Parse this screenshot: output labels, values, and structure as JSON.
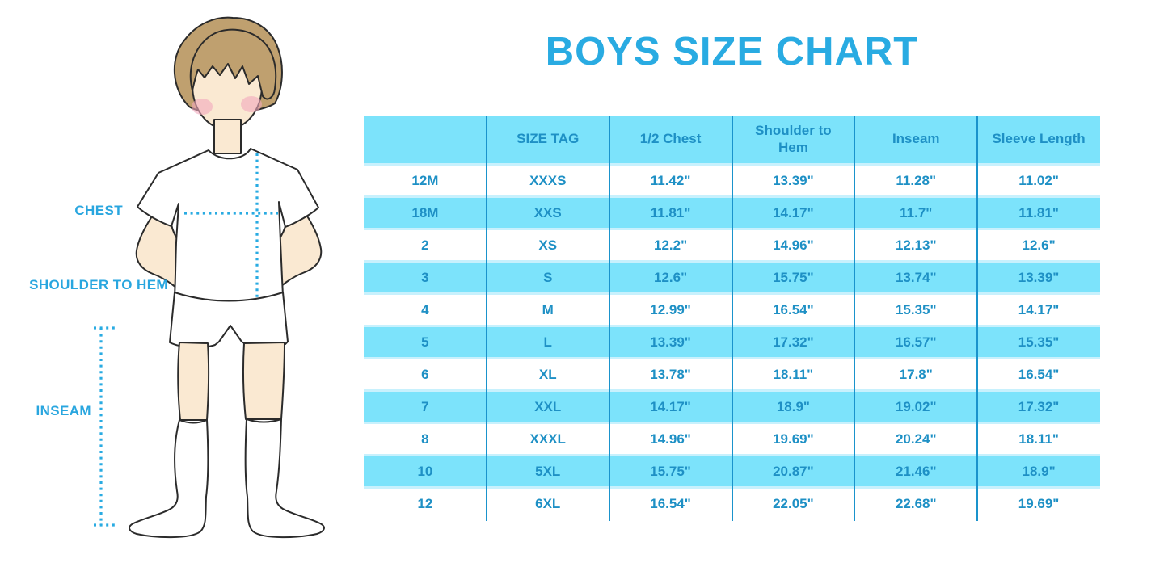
{
  "chart_data": {
    "type": "table",
    "title": "BOYS SIZE CHART",
    "columns": [
      "",
      "SIZE TAG",
      "1/2 Chest",
      "Shoulder to Hem",
      "Inseam",
      "Sleeve Length"
    ],
    "rows": [
      [
        "12M",
        "XXXS",
        "11.42\"",
        "13.39\"",
        "11.28\"",
        "11.02\""
      ],
      [
        "18M",
        "XXS",
        "11.81\"",
        "14.17\"",
        "11.7\"",
        "11.81\""
      ],
      [
        "2",
        "XS",
        "12.2\"",
        "14.96\"",
        "12.13\"",
        "12.6\""
      ],
      [
        "3",
        "S",
        "12.6\"",
        "15.75\"",
        "13.74\"",
        "13.39\""
      ],
      [
        "4",
        "M",
        "12.99\"",
        "16.54\"",
        "15.35\"",
        "14.17\""
      ],
      [
        "5",
        "L",
        "13.39\"",
        "17.32\"",
        "16.57\"",
        "15.35\""
      ],
      [
        "6",
        "XL",
        "13.78\"",
        "18.11\"",
        "17.8\"",
        "16.54\""
      ],
      [
        "7",
        "XXL",
        "14.17\"",
        "18.9\"",
        "19.02\"",
        "17.32\""
      ],
      [
        "8",
        "XXXL",
        "14.96\"",
        "19.69\"",
        "20.24\"",
        "18.11\""
      ],
      [
        "10",
        "5XL",
        "15.75\"",
        "20.87\"",
        "21.46\"",
        "18.9\""
      ],
      [
        "12",
        "6XL",
        "16.54\"",
        "22.05\"",
        "22.68\"",
        "19.69\""
      ]
    ],
    "row_striping": "white/blue alternating, header blue",
    "legend_position": "none",
    "grid": "vertical column separators only"
  },
  "figure": {
    "description": "outline illustration of a boy in white t-shirt, shorts and knee socks with dotted measurement lines",
    "labels": {
      "chest": "CHEST",
      "shoulder_to_hem": "SHOULDER TO HEM",
      "inseam": "INSEAM"
    }
  },
  "colors": {
    "title_blue": "#29ABE2",
    "label_blue": "#29A6DF",
    "table_text_blue": "#1E90C5",
    "row_blue": "#7CE3FB",
    "row_gap_blue": "#C8F1FD",
    "column_separator_blue": "#1A93CC",
    "dotted_line_blue": "#29ABE2",
    "skin": "#FAE9D2",
    "hair_brown": "#BFA06F",
    "cheek_pink": "#F2A9BC",
    "outline": "#2B2B2B"
  }
}
